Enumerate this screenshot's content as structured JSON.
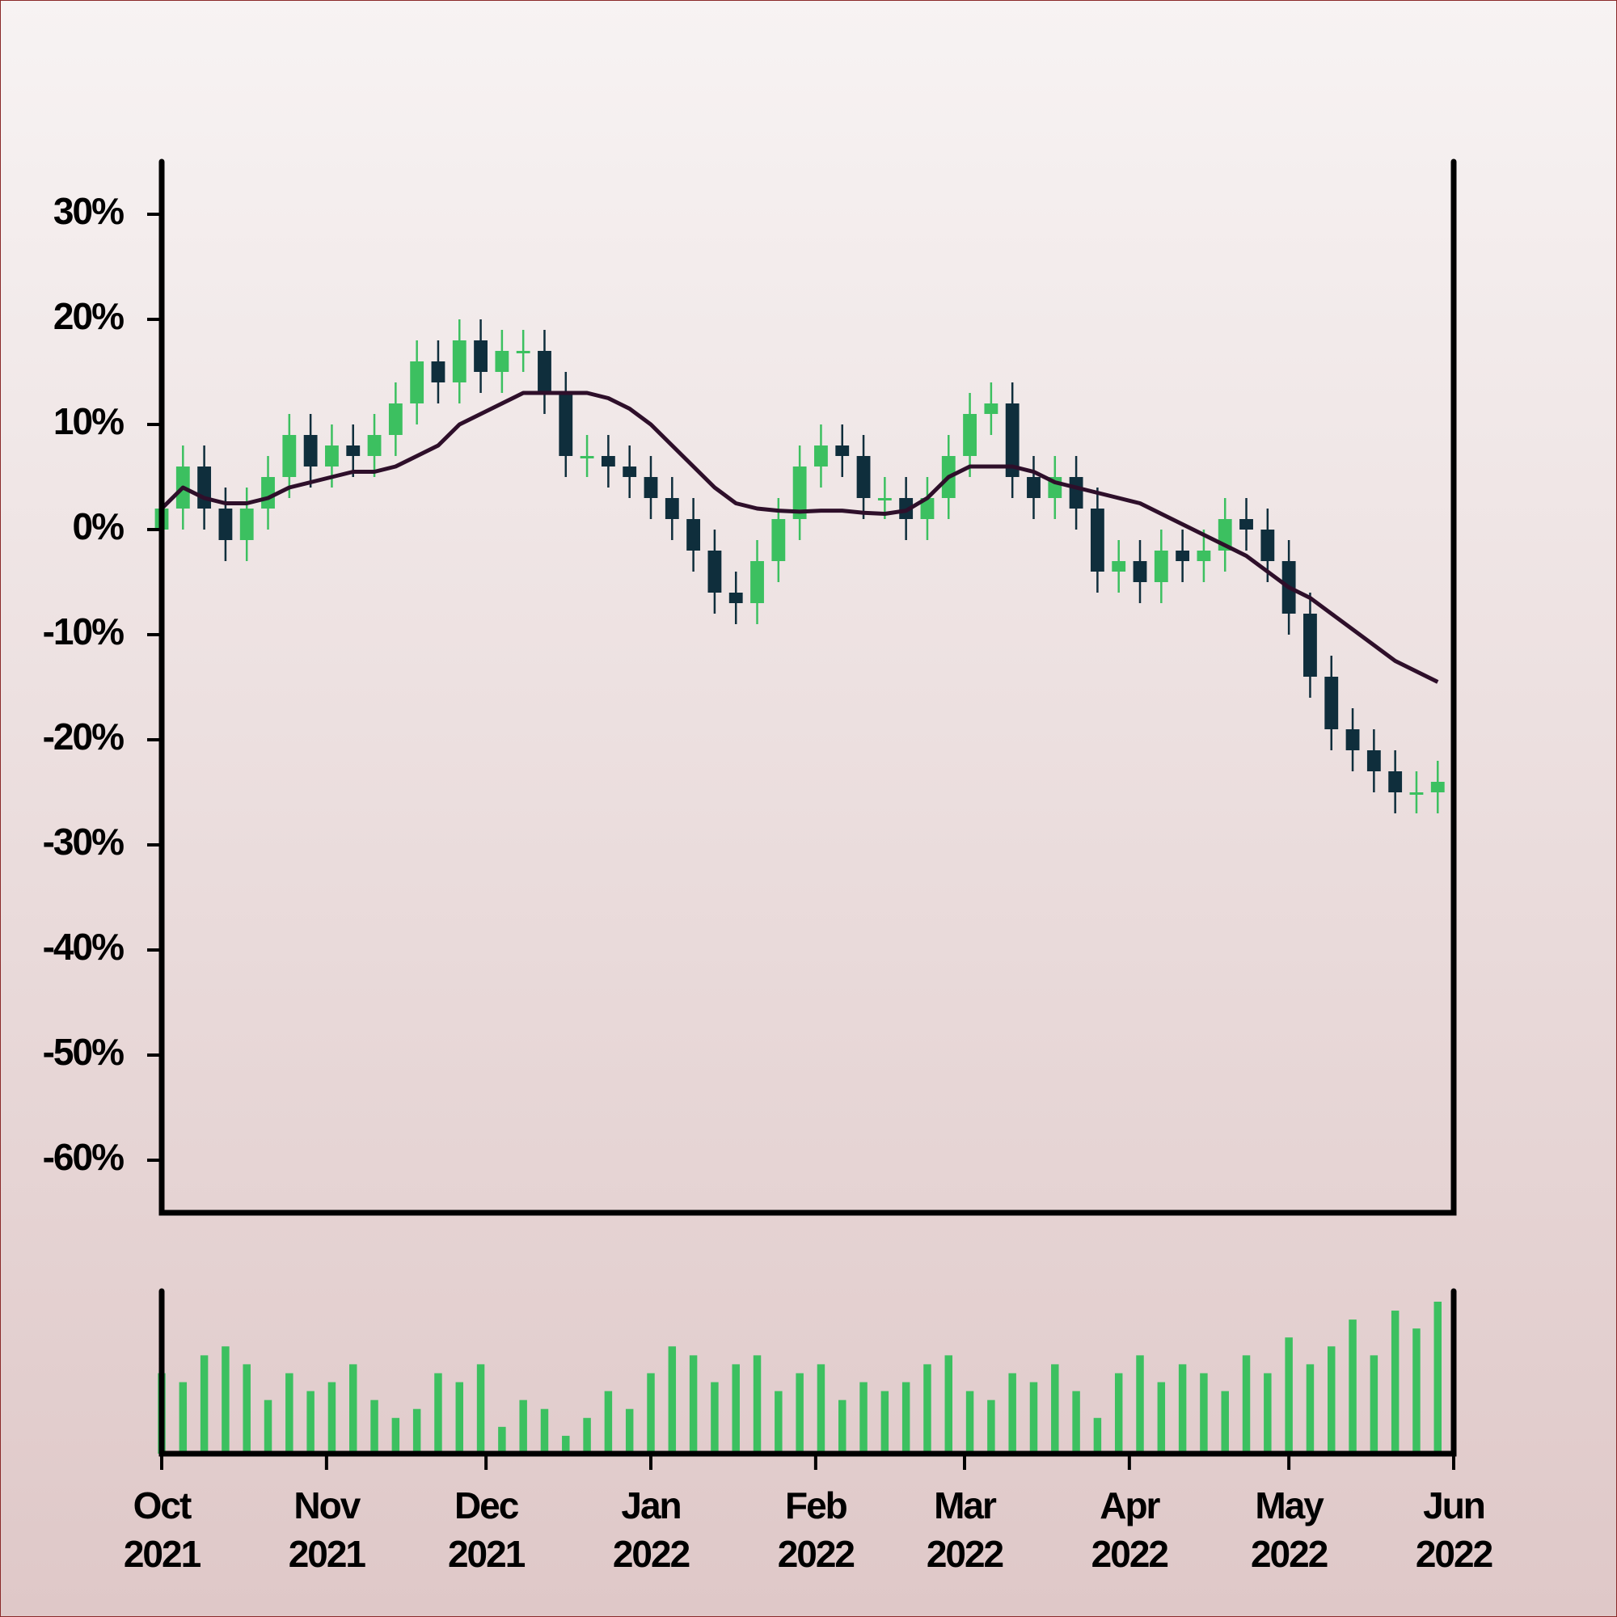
{
  "chart_data": {
    "type": "candlestick",
    "x": [
      0,
      4,
      8,
      12,
      16,
      20,
      24,
      28,
      32,
      36,
      40,
      44,
      48,
      52,
      56,
      60,
      64,
      68,
      72,
      76,
      80,
      84,
      88,
      92,
      96,
      100,
      104,
      108,
      112,
      116,
      120,
      124,
      128,
      132,
      136,
      140,
      144,
      148,
      152,
      156,
      160,
      164,
      168,
      172,
      176,
      180,
      184,
      188,
      192,
      196,
      200,
      204,
      208,
      212,
      216,
      220,
      224,
      228,
      232,
      236,
      240
    ],
    "open": [
      0,
      2,
      6,
      2,
      -1,
      2,
      5,
      9,
      6,
      8,
      7,
      9,
      12,
      16,
      14,
      18,
      15,
      17,
      17,
      13,
      7,
      7,
      6,
      5,
      3,
      1,
      -2,
      -6,
      -7,
      -3,
      1,
      6,
      8,
      7,
      3,
      3,
      1,
      3,
      7,
      11,
      12,
      5,
      3,
      5,
      2,
      -4,
      -3,
      -5,
      -2,
      -3,
      -2,
      1,
      0,
      -3,
      -8,
      -14,
      -19,
      -21,
      -23,
      -25,
      -25
    ],
    "high": [
      4,
      8,
      8,
      4,
      4,
      7,
      11,
      11,
      10,
      10,
      11,
      14,
      18,
      18,
      20,
      20,
      19,
      19,
      19,
      15,
      9,
      9,
      8,
      7,
      5,
      3,
      0,
      -4,
      -1,
      3,
      8,
      10,
      10,
      9,
      5,
      5,
      5,
      9,
      13,
      14,
      14,
      7,
      7,
      7,
      4,
      -1,
      -1,
      0,
      0,
      0,
      3,
      3,
      2,
      -1,
      -6,
      -12,
      -17,
      -19,
      -21,
      -23,
      -22
    ],
    "low": [
      -2,
      0,
      0,
      -3,
      -3,
      0,
      3,
      4,
      4,
      5,
      5,
      7,
      10,
      12,
      12,
      13,
      13,
      15,
      11,
      5,
      5,
      4,
      3,
      1,
      -1,
      -4,
      -8,
      -9,
      -9,
      -5,
      -1,
      4,
      5,
      1,
      1,
      -1,
      -1,
      1,
      5,
      9,
      3,
      1,
      1,
      0,
      -6,
      -6,
      -7,
      -7,
      -5,
      -5,
      -4,
      -2,
      -5,
      -10,
      -16,
      -21,
      -23,
      -25,
      -27,
      -27,
      -27
    ],
    "close": [
      2,
      6,
      2,
      -1,
      2,
      5,
      9,
      6,
      8,
      7,
      9,
      12,
      16,
      14,
      18,
      15,
      17,
      17,
      13,
      7,
      7,
      6,
      5,
      3,
      1,
      -2,
      -6,
      -7,
      -3,
      1,
      6,
      8,
      7,
      3,
      3,
      1,
      3,
      7,
      11,
      12,
      5,
      3,
      5,
      2,
      -4,
      -3,
      -5,
      -2,
      -3,
      -2,
      1,
      0,
      -3,
      -8,
      -14,
      -19,
      -21,
      -23,
      -25,
      -25,
      -24
    ],
    "up_color": "#3cc060",
    "down_color": "#0f2e3c",
    "moving_average": {
      "color": "#2e0f2a",
      "values": [
        2,
        4,
        3,
        2.5,
        2.5,
        3,
        4,
        4.5,
        5,
        5.5,
        5.5,
        6,
        7,
        8,
        10,
        11,
        12,
        13,
        13,
        13,
        13,
        12.5,
        11.5,
        10,
        8,
        6,
        4,
        2.5,
        2,
        1.8,
        1.7,
        1.8,
        1.8,
        1.6,
        1.5,
        1.8,
        3,
        5,
        6,
        6,
        6,
        5.5,
        4.5,
        4,
        3.5,
        3,
        2.5,
        1.5,
        0.5,
        -0.5,
        -1.5,
        -2.5,
        -4,
        -5.5,
        -6.5,
        -8,
        -9.5,
        -11,
        -12.5,
        -13.5,
        -14.5
      ]
    },
    "volume": {
      "color": "#3cc060",
      "values": [
        45,
        40,
        55,
        60,
        50,
        30,
        45,
        35,
        40,
        50,
        30,
        20,
        25,
        45,
        40,
        50,
        15,
        30,
        25,
        10,
        20,
        35,
        25,
        45,
        60,
        55,
        40,
        50,
        55,
        35,
        45,
        50,
        30,
        40,
        35,
        40,
        50,
        55,
        35,
        30,
        45,
        40,
        50,
        35,
        20,
        45,
        55,
        40,
        50,
        45,
        35,
        55,
        45,
        65,
        50,
        60,
        75,
        55,
        80,
        70,
        85
      ]
    },
    "xlim": [
      0,
      243
    ],
    "xticks": [
      {
        "value": 0,
        "label": [
          "Oct",
          "2021"
        ]
      },
      {
        "value": 31,
        "label": [
          "Nov",
          "2021"
        ]
      },
      {
        "value": 61,
        "label": [
          "Dec",
          "2021"
        ]
      },
      {
        "value": 92,
        "label": [
          "Jan",
          "2022"
        ]
      },
      {
        "value": 123,
        "label": [
          "Feb",
          "2022"
        ]
      },
      {
        "value": 151,
        "label": [
          "Mar",
          "2022"
        ]
      },
      {
        "value": 182,
        "label": [
          "Apr",
          "2022"
        ]
      },
      {
        "value": 212,
        "label": [
          "May",
          "2022"
        ]
      },
      {
        "value": 243,
        "label": [
          "Jun",
          "2022"
        ]
      }
    ],
    "ylim": [
      -65,
      35
    ],
    "yticks": [
      {
        "value": 30,
        "label": "30%"
      },
      {
        "value": 20,
        "label": "20%"
      },
      {
        "value": 10,
        "label": "10%"
      },
      {
        "value": 0,
        "label": "0%"
      },
      {
        "value": -10,
        "label": "-10%"
      },
      {
        "value": -20,
        "label": "-20%"
      },
      {
        "value": -30,
        "label": "-30%"
      },
      {
        "value": -40,
        "label": "-40%"
      },
      {
        "value": -50,
        "label": "-50%"
      },
      {
        "value": -60,
        "label": "-60%"
      }
    ]
  }
}
